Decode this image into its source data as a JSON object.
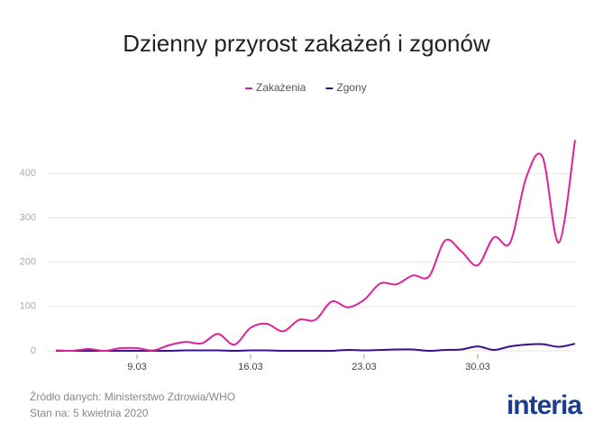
{
  "chart_data": {
    "type": "line",
    "title": "Dzienny przyrost zakażeń i zgonów",
    "categories": [
      null,
      null,
      null,
      null,
      null,
      "9.03",
      null,
      null,
      null,
      null,
      null,
      null,
      "16.03",
      null,
      null,
      null,
      null,
      null,
      null,
      "23.03",
      null,
      null,
      null,
      null,
      null,
      null,
      "30.03",
      null,
      null,
      null,
      null,
      null,
      null
    ],
    "series": [
      {
        "name": "Zakażenia",
        "color": "#e0229a",
        "values": [
          1,
          0,
          4,
          0,
          6,
          6,
          1,
          13,
          20,
          17,
          38,
          14,
          52,
          61,
          44,
          70,
          70,
          111,
          98,
          115,
          152,
          150,
          170,
          168,
          249,
          224,
          193,
          256,
          244,
          392,
          437,
          244,
          475
        ]
      },
      {
        "name": "Zgony",
        "color": "#3d0f8a",
        "values": [
          0,
          0,
          0,
          0,
          0,
          0,
          0,
          0,
          1,
          1,
          1,
          0,
          1,
          1,
          0,
          0,
          0,
          0,
          2,
          1,
          2,
          3,
          3,
          0,
          2,
          3,
          10,
          2,
          10,
          14,
          15,
          9,
          16
        ]
      }
    ],
    "ylim": [
      0,
      480
    ],
    "yticks": [
      0,
      100,
      200,
      300,
      400
    ],
    "grid": true,
    "legend": "top",
    "source": "Źródło danych: Ministerstwo Zdrowia/WHO",
    "date_note": "Stan na: 5 kwietnia 2020",
    "logo": "interia"
  }
}
